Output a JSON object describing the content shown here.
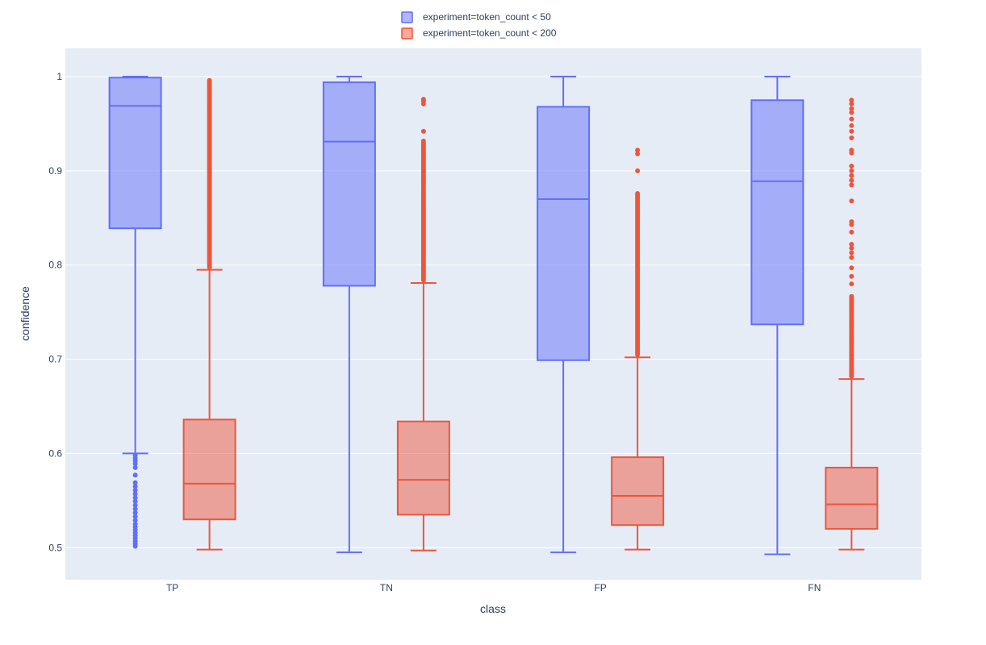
{
  "chart_data": {
    "type": "box",
    "xlabel": "class",
    "ylabel": "confidence",
    "categories": [
      "TP",
      "TN",
      "FP",
      "FN"
    ],
    "ylim": [
      0.466,
      1.03
    ],
    "yticks": [
      0.5,
      0.6,
      0.7,
      0.8,
      0.9,
      1
    ],
    "ytick_labels": [
      "0.5",
      "0.6",
      "0.7",
      "0.8",
      "0.9",
      "1"
    ],
    "grid": true,
    "legend_position": "top-center",
    "plot_background": "#E5ECF6",
    "series": [
      {
        "name": "experiment=token_count < 50",
        "color": "#636EFA",
        "fill": "rgba(99,110,250,0.5)",
        "boxes": [
          {
            "category": "TP",
            "min": 0.6,
            "q1": 0.839,
            "median": 0.969,
            "q3": 0.999,
            "max": 1.0,
            "outliers": [
              0.5015,
              0.504,
              0.507,
              0.51,
              0.513,
              0.516,
              0.519,
              0.522,
              0.525,
              0.529,
              0.533,
              0.537,
              0.541,
              0.545,
              0.549,
              0.553,
              0.557,
              0.561,
              0.565,
              0.569,
              0.577,
              0.585,
              0.589,
              0.592,
              0.595,
              0.598
            ]
          },
          {
            "category": "TN",
            "min": 0.495,
            "q1": 0.778,
            "median": 0.931,
            "q3": 0.994,
            "max": 1.0,
            "outliers": []
          },
          {
            "category": "FP",
            "min": 0.495,
            "q1": 0.699,
            "median": 0.87,
            "q3": 0.968,
            "max": 1.0,
            "outliers": []
          },
          {
            "category": "FN",
            "min": 0.493,
            "q1": 0.737,
            "median": 0.889,
            "q3": 0.975,
            "max": 1.0,
            "outliers": []
          }
        ]
      },
      {
        "name": "experiment=token_count < 200",
        "color": "#EF553B",
        "fill": "rgba(239,85,59,0.5)",
        "boxes": [
          {
            "category": "TP",
            "min": 0.498,
            "q1": 0.53,
            "median": 0.568,
            "q3": 0.636,
            "max": 0.795,
            "outlier_ranges": [
              [
                0.798,
                0.996
              ]
            ],
            "outliers": []
          },
          {
            "category": "TN",
            "min": 0.497,
            "q1": 0.535,
            "median": 0.572,
            "q3": 0.634,
            "max": 0.781,
            "outlier_ranges": [
              [
                0.784,
                0.933
              ]
            ],
            "outliers": [
              0.942,
              0.971,
              0.974,
              0.976
            ]
          },
          {
            "category": "FP",
            "min": 0.498,
            "q1": 0.524,
            "median": 0.555,
            "q3": 0.596,
            "max": 0.702,
            "outlier_ranges": [
              [
                0.705,
                0.877
              ]
            ],
            "outliers": [
              0.9,
              0.918,
              0.922
            ]
          },
          {
            "category": "FN",
            "min": 0.498,
            "q1": 0.52,
            "median": 0.546,
            "q3": 0.585,
            "max": 0.679,
            "outlier_ranges": [
              [
                0.682,
                0.768
              ]
            ],
            "outliers": [
              0.78,
              0.788,
              0.797,
              0.808,
              0.813,
              0.818,
              0.822,
              0.835,
              0.843,
              0.846,
              0.868,
              0.885,
              0.89,
              0.895,
              0.9,
              0.905,
              0.919,
              0.922,
              0.935,
              0.942,
              0.948,
              0.955,
              0.962,
              0.966,
              0.971,
              0.975
            ]
          }
        ]
      }
    ]
  }
}
